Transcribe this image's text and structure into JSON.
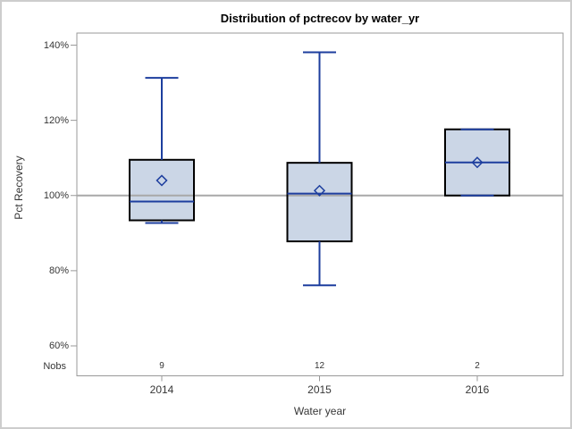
{
  "colors": {
    "box_fill": "#cbd6e6",
    "box_border": "#000000",
    "whisker": "#1d3e9e",
    "reference_line": "#a8a8a8",
    "frame_border": "#999999",
    "outer_border": "#cdcdcd",
    "text": "#363636",
    "title_text": "#000000"
  },
  "chart_data": {
    "type": "boxplot",
    "title": "Distribution of pctrecov by water_yr",
    "xlabel": "Water year",
    "ylabel": "Pct Recovery",
    "nobs_label": "Nobs",
    "ylim": [
      60,
      140
    ],
    "reference_line_y": 100,
    "grid": false,
    "yticks": [
      {
        "value": 140,
        "label": "140%"
      },
      {
        "value": 120,
        "label": "120%"
      },
      {
        "value": 100,
        "label": "100%"
      },
      {
        "value": 80,
        "label": "80%"
      },
      {
        "value": 60,
        "label": "60%"
      }
    ],
    "categories": [
      "2014",
      "2015",
      "2016"
    ],
    "series": [
      {
        "category": "2014",
        "nobs": 9,
        "whisker_low": 92.7,
        "q1": 93.4,
        "median": 98.4,
        "q3": 109.5,
        "whisker_high": 131.3,
        "mean": 104.0
      },
      {
        "category": "2015",
        "nobs": 12,
        "whisker_low": 76.1,
        "q1": 87.8,
        "median": 100.5,
        "q3": 108.7,
        "whisker_high": 138.1,
        "mean": 101.3
      },
      {
        "category": "2016",
        "nobs": 2,
        "whisker_low": 100.0,
        "q1": 100.0,
        "median": 108.8,
        "q3": 117.6,
        "whisker_high": 117.6,
        "mean": 108.8
      }
    ]
  }
}
